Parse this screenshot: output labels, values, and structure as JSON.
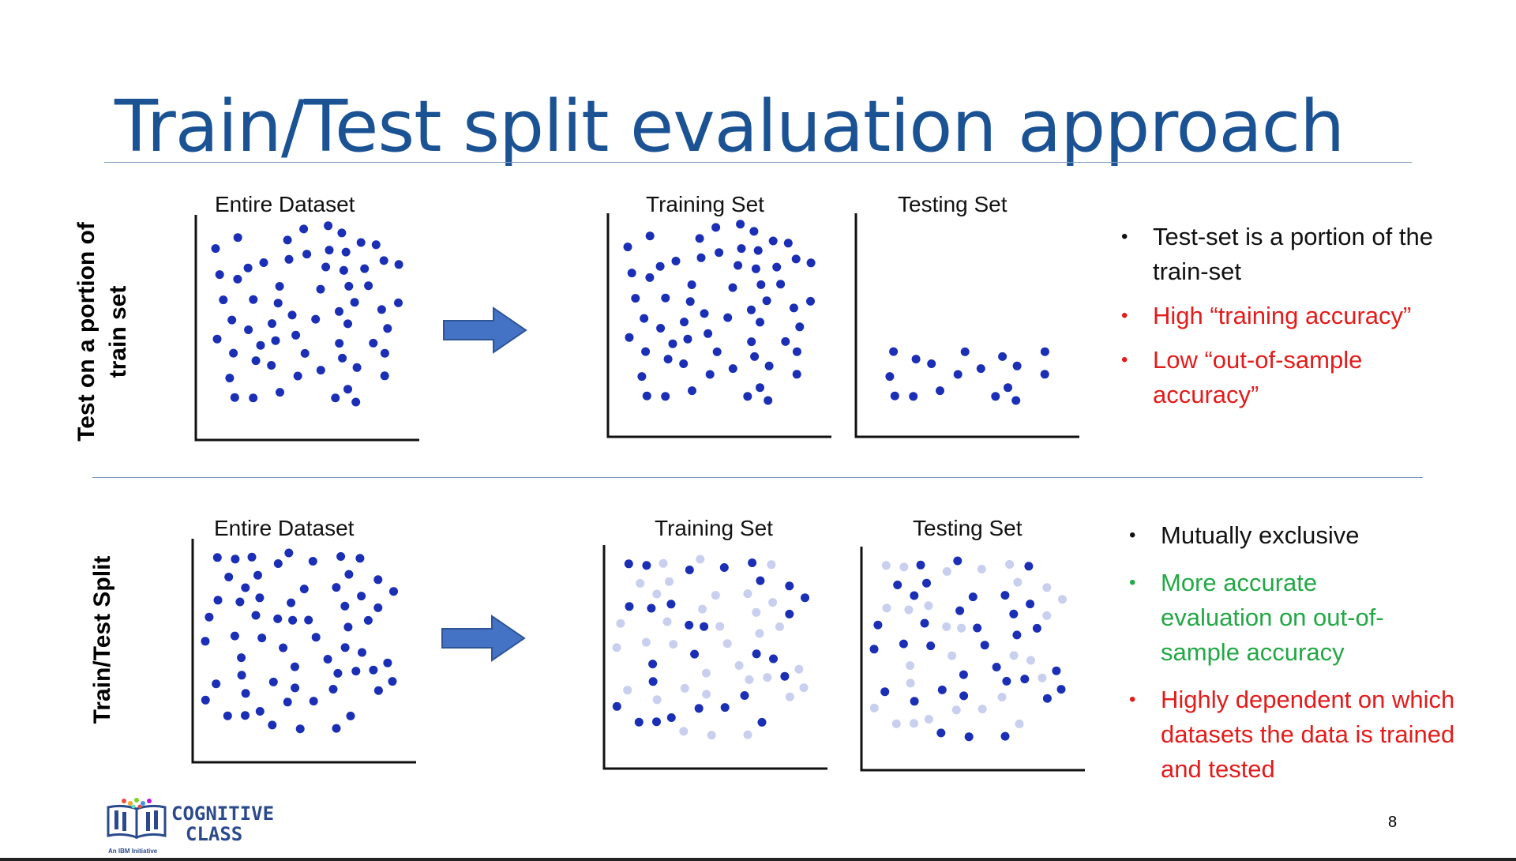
{
  "slide": {
    "title": "Train/Test split evaluation approach",
    "page_number": "8"
  },
  "row1": {
    "side_label_line1": "Test on a portion of",
    "side_label_line2": "train set",
    "entire_title": "Entire Dataset",
    "train_title": "Training Set",
    "test_title": "Testing Set",
    "bullets": [
      {
        "text": "Test-set is a portion of the train-set",
        "color": "#111111"
      },
      {
        "text": "High “training accuracy”",
        "color": "#e31b1b"
      },
      {
        "text": " Low “out-of-sample accuracy”",
        "color": "#e31b1b"
      }
    ]
  },
  "row2": {
    "side_label": "Train/Test Split",
    "entire_title": "Entire Dataset",
    "train_title": "Training Set",
    "test_title": "Testing Set",
    "bullets": [
      {
        "text": "Mutually exclusive",
        "color": "#111111"
      },
      {
        "text": "More accurate evaluation on out-of-sample accuracy",
        "color": "#22a845"
      },
      {
        "text": "Highly dependent on which datasets the data is trained and tested",
        "color": "#e31b1b"
      }
    ]
  },
  "logo": {
    "line1": "COGNITIVE",
    "line2": "CLASS",
    "tagline": "An IBM Initiative"
  },
  "colors": {
    "dot_dark": "#1a2fb5",
    "dot_light": "#c9cfee",
    "arrow": "#4472c4",
    "title": "#1a5294"
  }
}
